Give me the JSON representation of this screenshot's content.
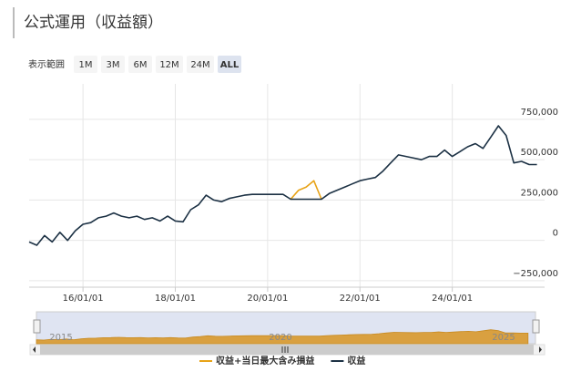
{
  "chart_data": {
    "type": "line",
    "title": "公式運用（収益額）",
    "range_selector": {
      "label": "表示範囲",
      "buttons": [
        "1M",
        "3M",
        "6M",
        "12M",
        "24M",
        "ALL"
      ],
      "selected": "ALL"
    },
    "x": [
      "14/11/01",
      "15/01/01",
      "15/03/01",
      "15/05/01",
      "15/07/01",
      "15/09/01",
      "15/11/01",
      "16/01/01",
      "16/03/01",
      "16/05/01",
      "16/07/01",
      "16/09/01",
      "16/11/01",
      "17/01/01",
      "17/03/01",
      "17/05/01",
      "17/07/01",
      "17/09/01",
      "17/11/01",
      "18/01/01",
      "18/03/01",
      "18/05/01",
      "18/07/01",
      "18/09/01",
      "18/11/01",
      "19/01/01",
      "19/03/01",
      "19/05/01",
      "19/07/01",
      "19/09/01",
      "19/11/01",
      "20/01/01",
      "20/03/01",
      "20/05/01",
      "20/07/01",
      "20/09/01",
      "20/11/01",
      "21/01/01",
      "21/03/01",
      "21/05/01",
      "21/07/01",
      "21/09/01",
      "21/11/01",
      "22/01/01",
      "22/03/01",
      "22/05/01",
      "22/07/01",
      "22/09/01",
      "22/11/01",
      "23/01/01",
      "23/03/01",
      "23/05/01",
      "23/07/01",
      "23/09/01",
      "23/11/01",
      "24/01/01",
      "24/03/01",
      "24/05/01",
      "24/07/01",
      "24/09/01",
      "24/11/01",
      "25/01/01",
      "25/03/01",
      "25/05/01",
      "25/07/01",
      "25/09/01",
      "25/11/01"
    ],
    "series": [
      {
        "name": "収益+当日最大含み損益",
        "color": "#e8a317",
        "values": [
          null,
          null,
          null,
          null,
          null,
          null,
          null,
          null,
          null,
          null,
          null,
          null,
          null,
          null,
          null,
          null,
          null,
          null,
          null,
          null,
          null,
          null,
          null,
          null,
          null,
          null,
          null,
          null,
          null,
          null,
          null,
          null,
          null,
          null,
          255000,
          310000,
          330000,
          370000,
          255000,
          null,
          null,
          null,
          null,
          null,
          null,
          null,
          null,
          null,
          null,
          null,
          null,
          null,
          null,
          null,
          null,
          null,
          null,
          null,
          null,
          null,
          null,
          null,
          null,
          null,
          null,
          null,
          null
        ]
      },
      {
        "name": "収益",
        "color": "#1c3144",
        "values": [
          -10000,
          -30000,
          30000,
          -10000,
          50000,
          0,
          60000,
          100000,
          110000,
          140000,
          150000,
          170000,
          150000,
          140000,
          150000,
          130000,
          140000,
          120000,
          150000,
          120000,
          115000,
          190000,
          220000,
          280000,
          250000,
          240000,
          260000,
          270000,
          280000,
          285000,
          285000,
          285000,
          285000,
          285000,
          255000,
          255000,
          255000,
          255000,
          255000,
          290000,
          310000,
          330000,
          350000,
          370000,
          380000,
          390000,
          430000,
          480000,
          530000,
          520000,
          510000,
          500000,
          520000,
          520000,
          560000,
          520000,
          550000,
          580000,
          600000,
          570000,
          640000,
          710000,
          650000,
          480000,
          490000,
          470000,
          470000
        ]
      }
    ],
    "xlim": [
      "14/11/01",
      "26/01/01"
    ],
    "xticks": [
      "16/01/01",
      "18/01/01",
      "20/01/01",
      "22/01/01",
      "24/01/01"
    ],
    "ylim": [
      -290000,
      970000
    ],
    "yticks": [
      {
        "value": -250000,
        "label": "−250,000"
      },
      0,
      {
        "value": 250000,
        "label": "250,000"
      },
      {
        "value": 500000,
        "label": "500,000"
      },
      {
        "value": 750000,
        "label": "750,000"
      }
    ],
    "grid": true,
    "navigator": {
      "labels": [
        "2015",
        "2020",
        "2025"
      ],
      "color": "#d9a040"
    }
  }
}
